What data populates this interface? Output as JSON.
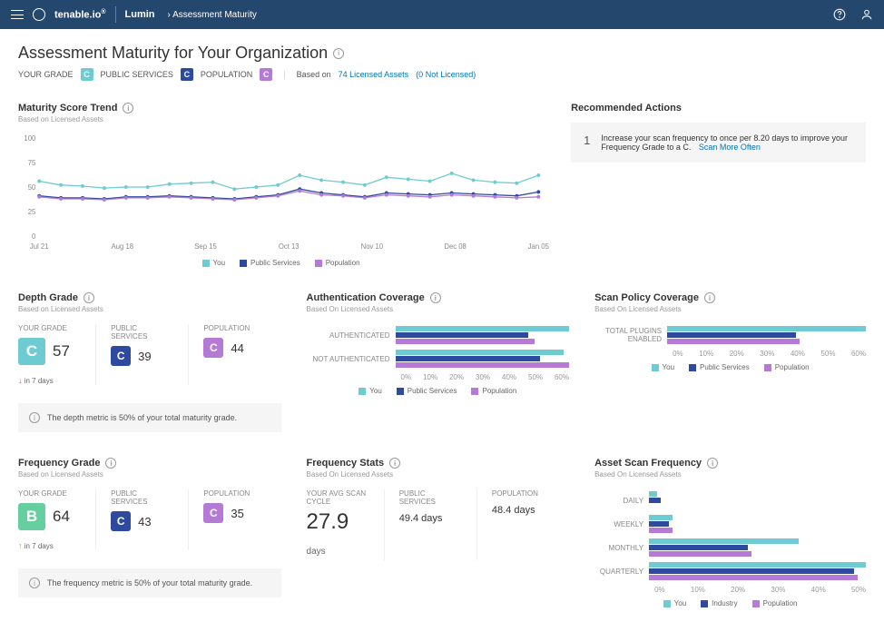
{
  "header": {
    "brand": "tenable.io",
    "product": "Lumin",
    "breadcrumb": "Assessment Maturity"
  },
  "page": {
    "title": "Assessment Maturity for Your Organization",
    "your_grade_label": "YOUR GRADE",
    "your_grade": "C",
    "public_services_label": "PUBLIC SERVICES",
    "public_services_grade": "C",
    "population_label": "POPULATION",
    "population_grade": "C",
    "based_on": "Based on",
    "licensed_link": "74 Licensed Assets",
    "not_licensed": "(0 Not Licensed)"
  },
  "colors": {
    "you": "#6ecbd1",
    "public": "#2e4a9e",
    "pop": "#b47ad6",
    "grade_c_light": "#6ecbd1",
    "grade_c_dark": "#2e4a9e",
    "grade_c_pop": "#b47ad6",
    "grade_b": "#65cfa0"
  },
  "trend": {
    "title": "Maturity Score Trend",
    "sub": "Based on Licensed Assets",
    "y_max": 100,
    "y_ticks": [
      0,
      25,
      50,
      75,
      100
    ],
    "x_labels": [
      "Jul 21",
      "Aug 18",
      "Sep 15",
      "Oct 13",
      "Nov 10",
      "Dec 08",
      "Jan 05"
    ],
    "legend": {
      "you": "You",
      "public": "Public Services",
      "pop": "Population"
    },
    "series": {
      "you": [
        56,
        52,
        51,
        49,
        50,
        50,
        53,
        54,
        55,
        48,
        50,
        52,
        62,
        57,
        55,
        52,
        60,
        58,
        56,
        64,
        57,
        55,
        54,
        62
      ],
      "public": [
        41,
        39,
        39,
        38,
        40,
        40,
        41,
        40,
        39,
        38,
        40,
        42,
        48,
        44,
        42,
        40,
        44,
        43,
        42,
        44,
        43,
        42,
        41,
        45
      ],
      "pop": [
        40,
        38,
        38,
        37,
        39,
        39,
        40,
        39,
        38,
        37,
        39,
        41,
        46,
        42,
        41,
        39,
        42,
        41,
        40,
        42,
        41,
        40,
        39,
        40
      ]
    }
  },
  "recommended": {
    "title": "Recommended Actions",
    "num": "1",
    "text": "Increase your scan frequency to once per 8.20 days to improve your Frequency Grade to a C.",
    "link": "Scan More Often"
  },
  "depth": {
    "title": "Depth Grade",
    "sub": "Based on Licensed Assets",
    "your_grade": "C",
    "your_score": "57",
    "public_grade": "C",
    "public_score": "39",
    "pop_grade": "C",
    "pop_score": "44",
    "trend_text": "in 7 days",
    "trend_dir": "down",
    "info": "The depth metric is 50% of your total maturity grade."
  },
  "auth": {
    "title": "Authentication Coverage",
    "sub": "Based On Licensed Assets",
    "rows": [
      {
        "label": "AUTHENTICATED",
        "you": 60,
        "public": 46,
        "pop": 48
      },
      {
        "label": "NOT AUTHENTICATED",
        "you": 58,
        "public": 50,
        "pop": 60
      }
    ],
    "max": 60,
    "ticks": [
      "0%",
      "10%",
      "20%",
      "30%",
      "40%",
      "50%",
      "60%"
    ],
    "legend": {
      "you": "You",
      "public": "Public Services",
      "pop": "Population"
    }
  },
  "scanpolicy": {
    "title": "Scan Policy Coverage",
    "sub": "Based On Licensed Assets",
    "rows": [
      {
        "label": "TOTAL PLUGINS ENABLED",
        "you": 60,
        "public": 39,
        "pop": 40
      }
    ],
    "max": 60,
    "ticks": [
      "0%",
      "10%",
      "20%",
      "30%",
      "40%",
      "50%",
      "60%"
    ],
    "legend": {
      "you": "You",
      "public": "Public Services",
      "pop": "Population"
    }
  },
  "freq": {
    "title": "Frequency Grade",
    "sub": "Based on Licensed Assets",
    "your_grade": "B",
    "your_score": "64",
    "public_grade": "C",
    "public_score": "43",
    "pop_grade": "C",
    "pop_score": "35",
    "trend_text": "in 7 days",
    "trend_dir": "up",
    "info": "The frequency metric is 50% of your total maturity grade."
  },
  "freqstats": {
    "title": "Frequency Stats",
    "sub": "Based On Licensed Assets",
    "avg_label": "YOUR AVG SCAN CYCLE",
    "avg_value": "27.9",
    "avg_unit": "days",
    "public_label": "PUBLIC SERVICES",
    "public_value": "49.4 days",
    "pop_label": "POPULATION",
    "pop_value": "48.4 days"
  },
  "assetfreq": {
    "title": "Asset Scan Frequency",
    "sub": "Based On Licensed Assets",
    "rows": [
      {
        "label": "DAILY",
        "you": 2,
        "public": 3,
        "pop": 0
      },
      {
        "label": "WEEKLY",
        "you": 6,
        "public": 5,
        "pop": 6
      },
      {
        "label": "MONTHLY",
        "you": 38,
        "public": 25,
        "pop": 26
      },
      {
        "label": "QUARTERLY",
        "you": 55,
        "public": 52,
        "pop": 53
      }
    ],
    "max": 55,
    "ticks": [
      "0%",
      "10%",
      "20%",
      "30%",
      "40%",
      "50%"
    ],
    "legend": {
      "you": "You",
      "public": "Industry",
      "pop": "Population"
    }
  }
}
